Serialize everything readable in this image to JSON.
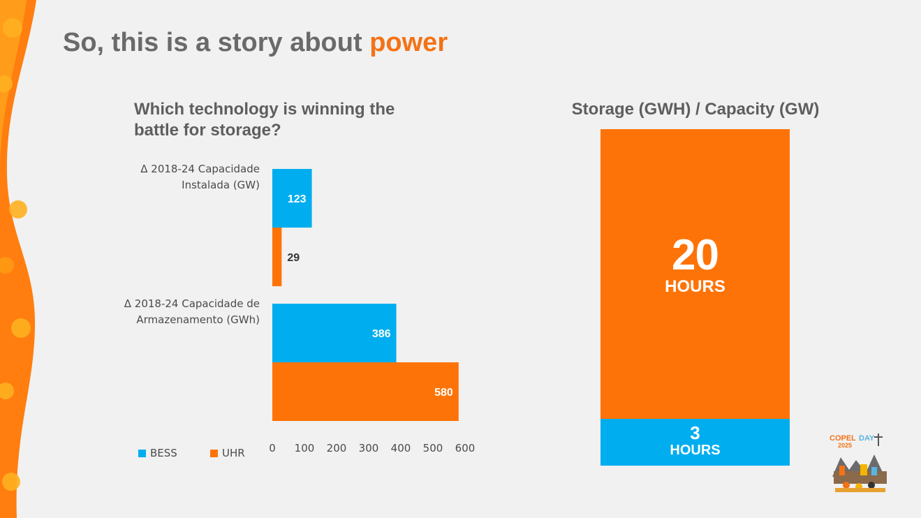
{
  "header": {
    "title_prefix": "So, this is a story about ",
    "title_accent": "power"
  },
  "colors": {
    "bess": "#00adee",
    "uhr": "#fe7307",
    "accent": "#f47216",
    "text": "#6a6a6a"
  },
  "chart_data": [
    {
      "type": "bar",
      "orientation": "horizontal",
      "title": "Which technology is winning the battle for storage?",
      "categories": [
        "Δ 2018-24 Capacidade Instalada (GW)",
        "Δ 2018-24 Capacidade de Armazenamento (GWh)"
      ],
      "category_lines": [
        [
          "Δ 2018-24 Capacidade",
          "Instalada (GW)"
        ],
        [
          "Δ 2018-24 Capacidade de",
          "Armazenamento (GWh)"
        ]
      ],
      "series": [
        {
          "name": "BESS",
          "values": [
            123,
            386
          ]
        },
        {
          "name": "UHR",
          "values": [
            29,
            580
          ]
        }
      ],
      "xlim": [
        0,
        600
      ],
      "xticks": [
        0,
        100,
        200,
        300,
        400,
        500,
        600
      ],
      "legend_position": "bottom-left",
      "grid": false
    },
    {
      "type": "bar",
      "orientation": "stacked",
      "title": "Storage (GWH) / Capacity (GW)",
      "segments": [
        {
          "value": 20,
          "unit": "HOURS",
          "series": "UHR"
        },
        {
          "value": 3,
          "unit": "HOURS",
          "series": "BESS"
        }
      ]
    }
  ],
  "logo": {
    "line1_a": "COPEL",
    "line1_b": "DAY",
    "line2": "2025"
  }
}
